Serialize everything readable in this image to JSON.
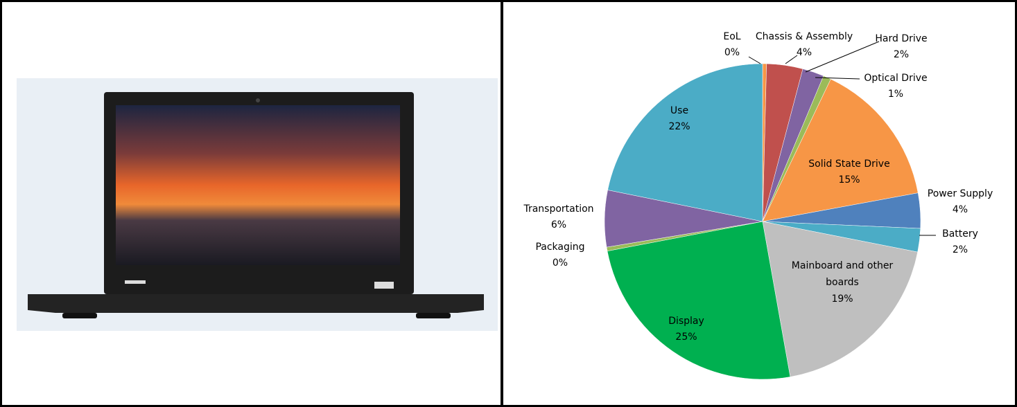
{
  "chart_data": {
    "type": "pie",
    "categories": [
      "EoL",
      "Chassis & Assembly",
      "Hard Drive",
      "Optical Drive",
      "Solid State  Drive",
      "Power Supply",
      "Battery",
      "Mainboard and other boards",
      "Display",
      "Packaging",
      "Transportation",
      "Use"
    ],
    "values": [
      0.4,
      3.7,
      2.2,
      0.8,
      15.0,
      3.6,
      2.4,
      19.1,
      24.8,
      0.4,
      5.8,
      21.8
    ],
    "value_labels": [
      "0%",
      "4%",
      "2%",
      "1%",
      "15%",
      "4%",
      "2%",
      "19%",
      "25%",
      "0%",
      "6%",
      "22%"
    ],
    "colors": [
      "#f79646",
      "#c0504d",
      "#8064a2",
      "#9bbb59",
      "#f79646",
      "#4f81bd",
      "#4bacc6",
      "#bfbfbf",
      "#00b050",
      "#9bbb59",
      "#8064a2",
      "#4bacc6"
    ]
  }
}
